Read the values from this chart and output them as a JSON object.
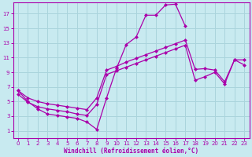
{
  "background_color": "#c8eaf0",
  "grid_color": "#aad4dc",
  "line_color": "#aa00aa",
  "xlabel": "Windchill (Refroidissement éolien,°C)",
  "xlabel_color": "#aa00aa",
  "tick_color": "#aa00aa",
  "xlim": [
    -0.5,
    23.5
  ],
  "ylim": [
    0,
    18.5
  ],
  "xticks": [
    0,
    1,
    2,
    3,
    4,
    5,
    6,
    7,
    8,
    9,
    10,
    11,
    12,
    13,
    14,
    15,
    16,
    17,
    18,
    19,
    20,
    21,
    22,
    23
  ],
  "yticks": [
    1,
    3,
    5,
    7,
    9,
    11,
    13,
    15,
    17
  ],
  "line1_x": [
    0,
    1,
    2,
    3,
    4,
    5,
    6,
    7,
    8,
    9,
    10,
    11,
    12,
    13,
    14,
    15,
    16,
    17
  ],
  "line1_y": [
    6.5,
    5.0,
    4.0,
    3.3,
    3.1,
    2.9,
    2.7,
    2.2,
    1.2,
    5.5,
    9.5,
    12.8,
    13.8,
    16.8,
    16.8,
    18.2,
    18.3,
    15.3
  ],
  "line2_x": [
    0,
    1,
    2,
    3,
    4,
    5,
    6,
    7,
    8,
    9,
    10,
    11,
    12,
    13,
    14,
    15,
    16,
    17,
    18,
    19,
    20,
    21,
    22,
    23
  ],
  "line2_y": [
    6.5,
    5.5,
    5.0,
    4.7,
    4.5,
    4.3,
    4.1,
    3.9,
    5.5,
    9.3,
    9.8,
    10.4,
    10.9,
    11.4,
    11.9,
    12.4,
    12.9,
    13.4,
    9.4,
    9.5,
    9.3,
    7.7,
    10.7,
    10.7
  ],
  "line3_x": [
    0,
    1,
    2,
    3,
    4,
    5,
    6,
    7,
    8,
    9,
    10,
    11,
    12,
    13,
    14,
    15,
    16,
    17,
    18,
    19,
    20,
    21,
    22,
    23
  ],
  "line3_y": [
    6.0,
    4.9,
    4.3,
    4.0,
    3.8,
    3.6,
    3.3,
    3.1,
    4.6,
    8.7,
    9.2,
    9.7,
    10.2,
    10.7,
    11.2,
    11.7,
    12.2,
    12.7,
    7.9,
    8.4,
    9.0,
    7.4,
    10.7,
    10.0
  ]
}
